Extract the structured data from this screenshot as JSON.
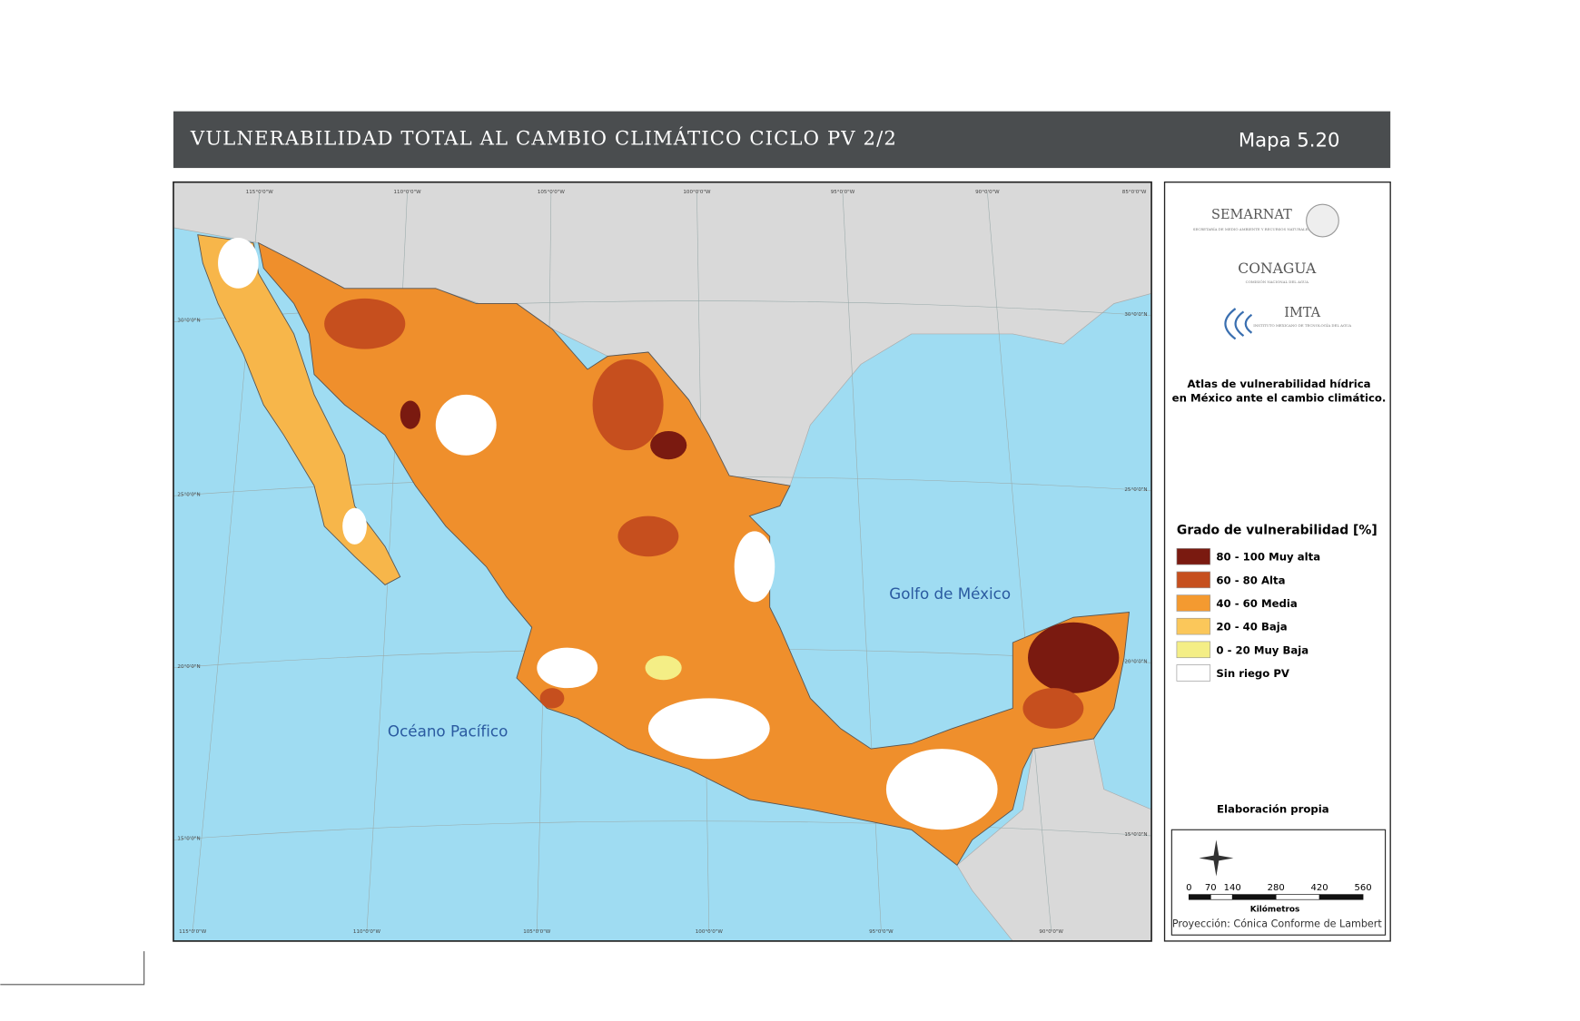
{
  "header": {
    "title": "VULNERABILIDAD TOTAL AL CAMBIO CLIMÁTICO CICLO PV 2/2",
    "map_number": "Mapa 5.20"
  },
  "map": {
    "graticule": {
      "top": [
        "115°0'0\"W",
        "110°0'0\"W",
        "105°0'0\"W",
        "100°0'0\"W",
        "95°0'0\"W",
        "90°0'0\"W",
        "85°0'0\"W"
      ],
      "bottom": [
        "115°0'0\"W",
        "110°0'0\"W",
        "105°0'0\"W",
        "100°0'0\"W",
        "95°0'0\"W",
        "90°0'0\"W"
      ],
      "left": [
        "30°0'0\"N",
        "25°0'0\"N",
        "20°0'0\"N",
        "15°0'0\"N"
      ],
      "right": [
        "30°0'0\"N",
        "25°0'0\"N",
        "20°0'0\"N",
        "15°0'0\"N"
      ]
    },
    "labels": {
      "gulf": "Golfo de México",
      "pacific": "Océano Pacífico"
    }
  },
  "side_panel": {
    "logos": {
      "semarnat": "SEMARNAT",
      "semarnat_sub": "SECRETARÍA DE MEDIO AMBIENTE Y RECURSOS NATURALES",
      "conagua": "CONAGUA",
      "conagua_sub": "COMISIÓN NACIONAL DEL AGUA",
      "imta": "IMTA",
      "imta_sub": "INSTITUTO MEXICANO DE TECNOLOGÍA DEL AGUA"
    },
    "atlas_note": [
      "Atlas de vulnerabilidad  hídrica",
      "en México ante el cambio climático."
    ],
    "legend": {
      "title": "Grado de vulnerabilidad [%]",
      "items": [
        {
          "label": "80 - 100 Muy alta",
          "color": "#7a1a10"
        },
        {
          "label": "60 - 80 Alta",
          "color": "#c64f1e"
        },
        {
          "label": "40 - 60 Media",
          "color": "#f49a30"
        },
        {
          "label": "20 - 40 Baja",
          "color": "#fbc75a"
        },
        {
          "label": "0 - 20 Muy Baja",
          "color": "#f4ee86"
        },
        {
          "label": "Sin riego PV",
          "color": "#ffffff"
        }
      ]
    },
    "credit": "Elaboración propia",
    "scale": {
      "ticks": [
        0,
        70,
        140,
        280,
        420,
        560
      ],
      "unit": "Kilómetros",
      "projection": "Proyección: Cónica Conforme de Lambert"
    }
  }
}
